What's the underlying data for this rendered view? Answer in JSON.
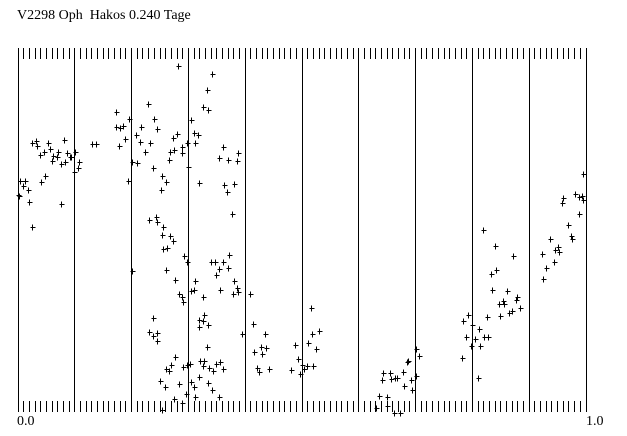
{
  "chart_data": {
    "type": "scatter",
    "title": "V2298 Oph  Hakos 0.240 Tage",
    "xlabel": "",
    "ylabel": "",
    "x_tick_labels": [
      "0.0",
      "1.0"
    ],
    "xlim": [
      0.0,
      1.0
    ],
    "ylim": [
      0.0,
      1.0
    ],
    "y_units": "relative (unlabeled axis)",
    "grid": "vertical lines every 0.1, minor ticks every 0.01 at top and bottom",
    "legend": "none",
    "marker": "plus",
    "color": "#000000",
    "points": [
      [
        0.0,
        0.597
      ],
      [
        0.002,
        0.594
      ],
      [
        0.004,
        0.636
      ],
      [
        0.009,
        0.622
      ],
      [
        0.014,
        0.636
      ],
      [
        0.018,
        0.611
      ],
      [
        0.021,
        0.578
      ],
      [
        0.025,
        0.508
      ],
      [
        0.026,
        0.742
      ],
      [
        0.032,
        0.747
      ],
      [
        0.035,
        0.733
      ],
      [
        0.039,
        0.708
      ],
      [
        0.042,
        0.633
      ],
      [
        0.046,
        0.717
      ],
      [
        0.049,
        0.65
      ],
      [
        0.053,
        0.742
      ],
      [
        0.058,
        0.725
      ],
      [
        0.06,
        0.692
      ],
      [
        0.063,
        0.706
      ],
      [
        0.069,
        0.703
      ],
      [
        0.072,
        0.717
      ],
      [
        0.077,
        0.683
      ],
      [
        0.077,
        0.572
      ],
      [
        0.081,
        0.75
      ],
      [
        0.083,
        0.689
      ],
      [
        0.088,
        0.714
      ],
      [
        0.092,
        0.703
      ],
      [
        0.095,
        0.703
      ],
      [
        0.099,
        0.661
      ],
      [
        0.102,
        0.717
      ],
      [
        0.106,
        0.672
      ],
      [
        0.109,
        0.689
      ],
      [
        0.132,
        0.739
      ],
      [
        0.139,
        0.739
      ],
      [
        0.173,
        0.828
      ],
      [
        0.174,
        0.786
      ],
      [
        0.181,
        0.783
      ],
      [
        0.185,
        0.789
      ],
      [
        0.19,
        0.753
      ],
      [
        0.178,
        0.733
      ],
      [
        0.194,
        0.636
      ],
      [
        0.197,
        0.808
      ],
      [
        0.201,
        0.689
      ],
      [
        0.202,
        0.386
      ],
      [
        0.208,
        0.764
      ],
      [
        0.21,
        0.686
      ],
      [
        0.215,
        0.744
      ],
      [
        0.218,
        0.786
      ],
      [
        0.224,
        0.717
      ],
      [
        0.229,
        0.85
      ],
      [
        0.234,
        0.742
      ],
      [
        0.238,
        0.672
      ],
      [
        0.241,
        0.808
      ],
      [
        0.245,
        0.781
      ],
      [
        0.232,
        0.528
      ],
      [
        0.243,
        0.536
      ],
      [
        0.246,
        0.522
      ],
      [
        0.252,
        0.611
      ],
      [
        0.255,
        0.65
      ],
      [
        0.257,
        0.508
      ],
      [
        0.254,
        0.486
      ],
      [
        0.257,
        0.447
      ],
      [
        0.261,
        0.633
      ],
      [
        0.261,
        0.389
      ],
      [
        0.264,
        0.45
      ],
      [
        0.266,
        0.694
      ],
      [
        0.268,
        0.483
      ],
      [
        0.269,
        0.717
      ],
      [
        0.273,
        0.756
      ],
      [
        0.273,
        0.469
      ],
      [
        0.276,
        0.722
      ],
      [
        0.278,
        0.361
      ],
      [
        0.28,
        0.767
      ],
      [
        0.283,
        0.956
      ],
      [
        0.285,
        0.322
      ],
      [
        0.289,
        0.714
      ],
      [
        0.289,
        0.314
      ],
      [
        0.29,
        0.731
      ],
      [
        0.292,
        0.3
      ],
      [
        0.294,
        0.428
      ],
      [
        0.298,
        0.742
      ],
      [
        0.298,
        0.411
      ],
      [
        0.301,
        0.675
      ],
      [
        0.305,
        0.806
      ],
      [
        0.306,
        0.331
      ],
      [
        0.31,
        0.769
      ],
      [
        0.31,
        0.333
      ],
      [
        0.313,
        0.742
      ],
      [
        0.313,
        0.358
      ],
      [
        0.317,
        0.764
      ],
      [
        0.32,
        0.631
      ],
      [
        0.326,
        0.842
      ],
      [
        0.326,
        0.314
      ],
      [
        0.333,
        0.889
      ],
      [
        0.335,
        0.833
      ],
      [
        0.34,
        0.411
      ],
      [
        0.342,
        0.933
      ],
      [
        0.347,
        0.411
      ],
      [
        0.35,
        0.375
      ],
      [
        0.354,
        0.392
      ],
      [
        0.354,
        0.7
      ],
      [
        0.361,
        0.731
      ],
      [
        0.361,
        0.411
      ],
      [
        0.364,
        0.625
      ],
      [
        0.368,
        0.606
      ],
      [
        0.371,
        0.694
      ],
      [
        0.371,
        0.394
      ],
      [
        0.373,
        0.431
      ],
      [
        0.377,
        0.544
      ],
      [
        0.382,
        0.628
      ],
      [
        0.382,
        0.358
      ],
      [
        0.386,
        0.339
      ],
      [
        0.387,
        0.692
      ],
      [
        0.389,
        0.714
      ],
      [
        0.389,
        0.328
      ],
      [
        0.379,
        0.322
      ],
      [
        0.357,
        0.333
      ],
      [
        0.232,
        0.217
      ],
      [
        0.238,
        0.206
      ],
      [
        0.239,
        0.256
      ],
      [
        0.245,
        0.214
      ],
      [
        0.246,
        0.192
      ],
      [
        0.25,
        0.081
      ],
      [
        0.254,
        0.0
      ],
      [
        0.259,
        0.064
      ],
      [
        0.262,
        0.114
      ],
      [
        0.266,
        0.108
      ],
      [
        0.271,
        0.125
      ],
      [
        0.275,
        0.031
      ],
      [
        0.278,
        0.147
      ],
      [
        0.285,
        0.072
      ],
      [
        0.289,
        0.019
      ],
      [
        0.292,
        0.119
      ],
      [
        0.296,
        0.044
      ],
      [
        0.299,
        0.125
      ],
      [
        0.303,
        0.128
      ],
      [
        0.306,
        0.078
      ],
      [
        0.31,
        0.064
      ],
      [
        0.313,
        0.036
      ],
      [
        0.319,
        0.092
      ],
      [
        0.319,
        0.25
      ],
      [
        0.32,
        0.231
      ],
      [
        0.322,
        0.136
      ],
      [
        0.326,
        0.247
      ],
      [
        0.326,
        0.122
      ],
      [
        0.329,
        0.264
      ],
      [
        0.329,
        0.136
      ],
      [
        0.333,
        0.175
      ],
      [
        0.335,
        0.075
      ],
      [
        0.336,
        0.236
      ],
      [
        0.338,
        0.117
      ],
      [
        0.343,
        0.056
      ],
      [
        0.345,
        0.108
      ],
      [
        0.35,
        0.128
      ],
      [
        0.354,
        0.036
      ],
      [
        0.357,
        0.133
      ],
      [
        0.361,
        0.114
      ],
      [
        0.396,
        0.211
      ],
      [
        0.41,
        0.322
      ],
      [
        0.414,
        0.239
      ],
      [
        0.417,
        0.161
      ],
      [
        0.421,
        0.117
      ],
      [
        0.426,
        0.106
      ],
      [
        0.428,
        0.175
      ],
      [
        0.431,
        0.156
      ],
      [
        0.435,
        0.211
      ],
      [
        0.438,
        0.172
      ],
      [
        0.442,
        0.114
      ],
      [
        0.482,
        0.111
      ],
      [
        0.489,
        0.181
      ],
      [
        0.493,
        0.142
      ],
      [
        0.498,
        0.1
      ],
      [
        0.5,
        0.125
      ],
      [
        0.504,
        0.114
      ],
      [
        0.509,
        0.122
      ],
      [
        0.512,
        0.186
      ],
      [
        0.516,
        0.283
      ],
      [
        0.519,
        0.211
      ],
      [
        0.521,
        0.122
      ],
      [
        0.525,
        0.169
      ],
      [
        0.53,
        0.219
      ],
      [
        0.632,
        0.006
      ],
      [
        0.636,
        0.039
      ],
      [
        0.641,
        0.083
      ],
      [
        0.644,
        0.103
      ],
      [
        0.65,
        0.011
      ],
      [
        0.651,
        0.036
      ],
      [
        0.655,
        0.103
      ],
      [
        0.657,
        0.086
      ],
      [
        0.662,
        -0.008
      ],
      [
        0.673,
        -0.008
      ],
      [
        0.665,
        0.089
      ],
      [
        0.669,
        0.089
      ],
      [
        0.678,
        0.106
      ],
      [
        0.681,
        0.067
      ],
      [
        0.685,
        0.133
      ],
      [
        0.688,
        0.136
      ],
      [
        0.692,
        0.083
      ],
      [
        0.695,
        0.056
      ],
      [
        0.701,
        0.094
      ],
      [
        0.702,
        0.169
      ],
      [
        0.706,
        0.15
      ],
      [
        0.782,
        0.144
      ],
      [
        0.785,
        0.247
      ],
      [
        0.789,
        0.203
      ],
      [
        0.794,
        0.264
      ],
      [
        0.798,
        0.178
      ],
      [
        0.801,
        0.236
      ],
      [
        0.805,
        0.197
      ],
      [
        0.81,
        0.089
      ],
      [
        0.813,
        0.225
      ],
      [
        0.815,
        0.178
      ],
      [
        0.819,
        0.5
      ],
      [
        0.822,
        0.203
      ],
      [
        0.826,
        0.258
      ],
      [
        0.829,
        0.203
      ],
      [
        0.833,
        0.378
      ],
      [
        0.836,
        0.333
      ],
      [
        0.84,
        0.456
      ],
      [
        0.843,
        0.389
      ],
      [
        0.847,
        0.294
      ],
      [
        0.85,
        0.261
      ],
      [
        0.854,
        0.303
      ],
      [
        0.857,
        0.294
      ],
      [
        0.861,
        0.331
      ],
      [
        0.866,
        0.269
      ],
      [
        0.87,
        0.275
      ],
      [
        0.873,
        0.428
      ],
      [
        0.877,
        0.306
      ],
      [
        0.88,
        0.314
      ],
      [
        0.884,
        0.283
      ],
      [
        0.923,
        0.433
      ],
      [
        0.926,
        0.364
      ],
      [
        0.93,
        0.394
      ],
      [
        0.937,
        0.475
      ],
      [
        0.944,
        0.411
      ],
      [
        0.947,
        0.444
      ],
      [
        0.951,
        0.453
      ],
      [
        0.954,
        0.439
      ],
      [
        0.958,
        0.575
      ],
      [
        0.961,
        0.589
      ],
      [
        0.97,
        0.514
      ],
      [
        0.974,
        0.483
      ],
      [
        0.977,
        0.475
      ],
      [
        0.982,
        0.6
      ],
      [
        0.988,
        0.544
      ],
      [
        0.988,
        0.592
      ],
      [
        0.993,
        0.594
      ],
      [
        0.995,
        0.583
      ],
      [
        0.996,
        0.656
      ]
    ]
  }
}
